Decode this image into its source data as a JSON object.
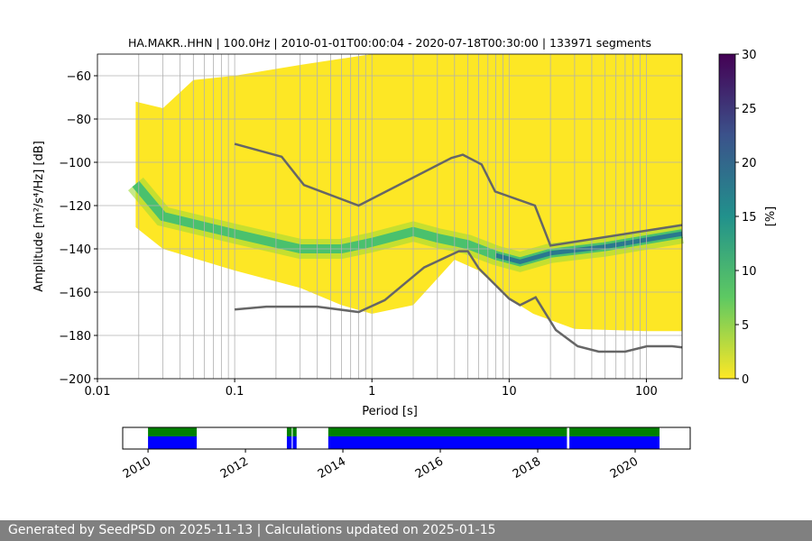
{
  "chart_data": {
    "type": "heatmap",
    "title": "HA.MAKR..HHN | 100.0Hz | 2010-01-01T00:00:04 - 2020-07-18T00:30:00 | 133971 segments",
    "xlabel": "Period [s]",
    "ylabel": "Amplitude [m²/s⁴/Hz] [dB]",
    "xscale": "log",
    "xlim": [
      0.01,
      182
    ],
    "ylim": [
      -200,
      -50
    ],
    "xticks": [
      {
        "v": 0.01,
        "l": "0.01"
      },
      {
        "v": 0.1,
        "l": "0.1"
      },
      {
        "v": 1,
        "l": "1"
      },
      {
        "v": 10,
        "l": "10"
      },
      {
        "v": 100,
        "l": "100"
      }
    ],
    "yticks": [
      -60,
      -80,
      -100,
      -120,
      -140,
      -160,
      -180,
      -200
    ],
    "psd_envelope_upper": [
      [
        0.019,
        -72
      ],
      [
        0.03,
        -75
      ],
      [
        0.05,
        -62
      ],
      [
        0.1,
        -60
      ],
      [
        0.3,
        -55
      ],
      [
        1,
        -50
      ],
      [
        182,
        -50
      ]
    ],
    "psd_envelope_lower": [
      [
        0.019,
        -130
      ],
      [
        0.03,
        -140
      ],
      [
        0.1,
        -150
      ],
      [
        0.3,
        -158
      ],
      [
        0.6,
        -166
      ],
      [
        1,
        -170
      ],
      [
        2,
        -166
      ],
      [
        4,
        -145
      ],
      [
        6,
        -150
      ],
      [
        10,
        -163
      ],
      [
        15,
        -170
      ],
      [
        30,
        -177
      ],
      [
        100,
        -178
      ],
      [
        182,
        -178
      ]
    ],
    "psd_mode": [
      [
        0.019,
        -110
      ],
      [
        0.03,
        -125
      ],
      [
        0.1,
        -133
      ],
      [
        0.3,
        -140
      ],
      [
        0.6,
        -140
      ],
      [
        1,
        -137
      ],
      [
        2,
        -132
      ],
      [
        3,
        -135
      ],
      [
        5,
        -138
      ],
      [
        8,
        -143
      ],
      [
        12,
        -146
      ],
      [
        20,
        -142
      ],
      [
        50,
        -139
      ],
      [
        182,
        -133
      ]
    ],
    "nhnm": [
      [
        0.1,
        -91.5
      ],
      [
        0.22,
        -97.4
      ],
      [
        0.32,
        -110.5
      ],
      [
        0.8,
        -120
      ],
      [
        3.8,
        -98
      ],
      [
        4.6,
        -96.5
      ],
      [
        6.3,
        -101
      ],
      [
        7.9,
        -113.5
      ],
      [
        15.4,
        -120
      ],
      [
        20,
        -138.5
      ],
      [
        182,
        -129
      ]
    ],
    "nlnm": [
      [
        0.1,
        -168
      ],
      [
        0.17,
        -166.7
      ],
      [
        0.4,
        -166.7
      ],
      [
        0.8,
        -169.2
      ],
      [
        1.24,
        -163.7
      ],
      [
        2.4,
        -148.6
      ],
      [
        4.3,
        -141.1
      ],
      [
        5.0,
        -141.1
      ],
      [
        6.0,
        -149
      ],
      [
        10,
        -163
      ],
      [
        12,
        -166
      ],
      [
        15.6,
        -162.4
      ],
      [
        21.9,
        -177.5
      ],
      [
        31.6,
        -185
      ],
      [
        45,
        -187.5
      ],
      [
        70,
        -187.5
      ],
      [
        101,
        -185
      ],
      [
        154,
        -185
      ],
      [
        182,
        -185.5
      ]
    ],
    "colorbar": {
      "label": "[%]",
      "range": [
        0,
        30
      ],
      "ticks": [
        0,
        5,
        10,
        15,
        20,
        25,
        30
      ]
    },
    "timeline": {
      "range": [
        2009.48,
        2021.13
      ],
      "ticks": [
        2010,
        2012,
        2014,
        2016,
        2018,
        2020
      ],
      "segments": [
        [
          2010.0,
          2011.0
        ],
        [
          2012.85,
          2012.95
        ],
        [
          2012.97,
          2013.05
        ],
        [
          2013.7,
          2018.6
        ],
        [
          2018.65,
          2020.5
        ]
      ],
      "colors": {
        "data": "#0000ff",
        "gaps": "#008000"
      }
    }
  },
  "footer": "Generated by SeedPSD on 2025-11-13 | Calculations updated on 2025-01-15"
}
